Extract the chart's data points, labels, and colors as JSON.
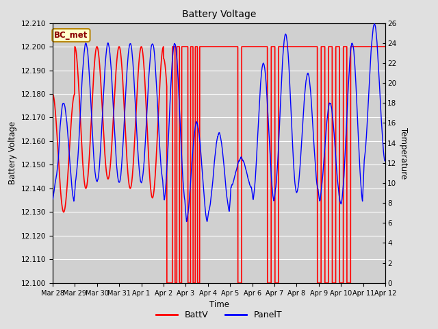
{
  "title": "Battery Voltage",
  "xlabel": "Time",
  "ylabel_left": "Battery Voltage",
  "ylabel_right": "Temperature",
  "legend_labels": [
    "BattV",
    "PanelT"
  ],
  "annotation_text": "BC_met",
  "annotation_color": "#8b0000",
  "annotation_bg": "#ffffcc",
  "annotation_border": "#b8860b",
  "left_ylim": [
    12.1,
    12.21
  ],
  "right_ylim": [
    0,
    26
  ],
  "left_yticks": [
    12.1,
    12.11,
    12.12,
    12.13,
    12.14,
    12.15,
    12.16,
    12.17,
    12.18,
    12.19,
    12.2,
    12.21
  ],
  "right_yticks": [
    0,
    2,
    4,
    6,
    8,
    10,
    12,
    14,
    16,
    18,
    20,
    22,
    24,
    26
  ],
  "bg_color": "#e0e0e0",
  "plot_bg_color": "#d0d0d0",
  "grid_color": "white",
  "batt_color": "red",
  "panel_color": "blue",
  "x_labels": [
    "Mar 28",
    "Mar 29",
    "Mar 30",
    "Mar 31",
    "Apr 1",
    "Apr 2",
    "Apr 3",
    "Apr 4",
    "Apr 5",
    "Apr 6",
    "Apr 7",
    "Apr 8",
    "Apr 9",
    "Apr 10",
    "Apr 11",
    "Apr 12"
  ]
}
